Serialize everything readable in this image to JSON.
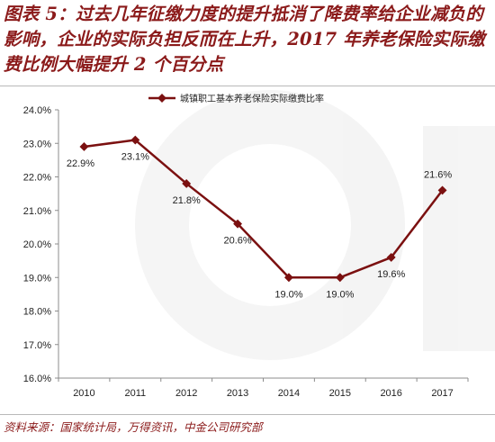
{
  "title": "图表 5：过去几年征缴力度的提升抵消了降费率给企业减负的影响，企业的实际负担反而在上升，2017 年养老保险实际缴费比例大幅提升 2 个百分点",
  "source": "资料来源：国家统计局，万得资讯，中金公司研究部",
  "colors": {
    "line": "#7b1010",
    "title": "#8b1a1a"
  },
  "chart_data": {
    "type": "line",
    "categories": [
      "2010",
      "2011",
      "2012",
      "2013",
      "2014",
      "2015",
      "2016",
      "2017"
    ],
    "series": [
      {
        "name": "城镇职工基本养老保险实际缴费比率",
        "values": [
          22.9,
          23.1,
          21.8,
          20.6,
          19.0,
          19.0,
          19.6,
          21.6
        ],
        "labels": [
          "22.9%",
          "23.1%",
          "21.8%",
          "20.6%",
          "19.0%",
          "19.0%",
          "19.6%",
          "21.6%"
        ]
      }
    ],
    "yticks": [
      "16.0%",
      "17.0%",
      "18.0%",
      "19.0%",
      "20.0%",
      "21.0%",
      "22.0%",
      "23.0%",
      "24.0%"
    ],
    "ylim": [
      16,
      24
    ],
    "grid": false,
    "legend": "top-center"
  }
}
